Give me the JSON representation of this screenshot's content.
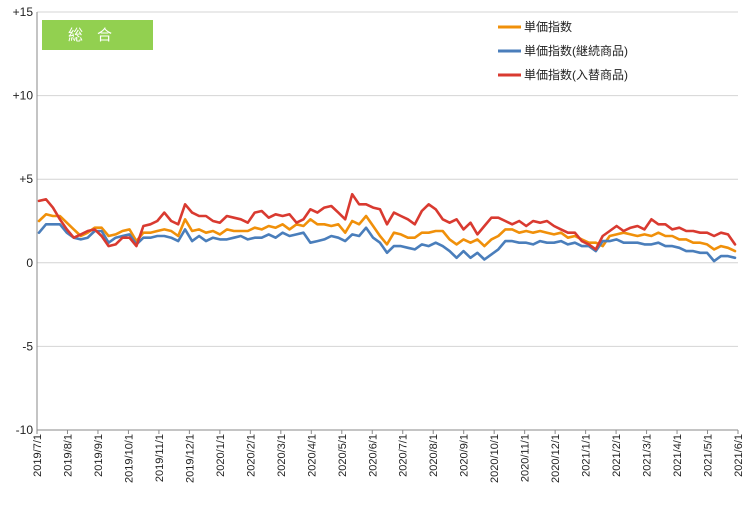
{
  "chart_data": {
    "type": "line",
    "title": "総合",
    "ylim": [
      -10,
      15
    ],
    "y_ticks": [
      {
        "value": 15,
        "label": "+15"
      },
      {
        "value": 10,
        "label": "+10"
      },
      {
        "value": 5,
        "label": "+5"
      },
      {
        "value": 0,
        "label": "0"
      },
      {
        "value": -5,
        "label": "-5"
      },
      {
        "value": -10,
        "label": "-10"
      }
    ],
    "x_tick_labels": [
      "2019/7/1",
      "2019/8/1",
      "2019/9/1",
      "2019/10/1",
      "2019/11/1",
      "2019/12/1",
      "2020/1/1",
      "2020/2/1",
      "2020/3/1",
      "2020/4/1",
      "2020/5/1",
      "2020/6/1",
      "2020/7/1",
      "2020/8/1",
      "2020/9/1",
      "2020/10/1",
      "2020/11/1",
      "2020/12/1",
      "2021/1/1",
      "2021/2/1",
      "2021/3/1",
      "2021/4/1",
      "2021/5/1",
      "2021/6/1"
    ],
    "grid": "horizontal-major",
    "legend_position": "top-right",
    "series": [
      {
        "name": "単価指数",
        "color": "#f0900a",
        "values": [
          2.5,
          2.9,
          2.8,
          2.8,
          2.4,
          2.0,
          1.6,
          1.8,
          2.1,
          2.1,
          1.6,
          1.7,
          1.9,
          2.0,
          1.3,
          1.8,
          1.8,
          1.9,
          2.0,
          1.9,
          1.6,
          2.6,
          1.9,
          2.0,
          1.8,
          1.9,
          1.7,
          2.0,
          1.9,
          1.9,
          1.9,
          2.1,
          2.0,
          2.2,
          2.1,
          2.3,
          2.0,
          2.3,
          2.2,
          2.6,
          2.3,
          2.3,
          2.2,
          2.3,
          1.8,
          2.5,
          2.3,
          2.8,
          2.2,
          1.6,
          1.1,
          1.8,
          1.7,
          1.5,
          1.5,
          1.8,
          1.8,
          1.9,
          1.9,
          1.4,
          1.1,
          1.4,
          1.2,
          1.4,
          1.0,
          1.4,
          1.6,
          2.0,
          2.0,
          1.8,
          1.9,
          1.8,
          1.9,
          1.8,
          1.7,
          1.8,
          1.5,
          1.6,
          1.4,
          1.2,
          1.2,
          1.0,
          1.6,
          1.7,
          1.8,
          1.7,
          1.6,
          1.7,
          1.6,
          1.8,
          1.6,
          1.6,
          1.4,
          1.4,
          1.2,
          1.2,
          1.1,
          0.8,
          1.0,
          0.9,
          0.7
        ],
        "smoothed_note": ""
      },
      {
        "name": "単価指数(継続商品)",
        "color": "#4a7ebb",
        "values": [
          1.8,
          2.3,
          2.3,
          2.3,
          1.8,
          1.5,
          1.4,
          1.5,
          1.9,
          1.9,
          1.2,
          1.5,
          1.6,
          1.7,
          1.1,
          1.5,
          1.5,
          1.6,
          1.6,
          1.5,
          1.3,
          2.0,
          1.3,
          1.6,
          1.3,
          1.5,
          1.4,
          1.4,
          1.5,
          1.6,
          1.4,
          1.5,
          1.5,
          1.7,
          1.5,
          1.8,
          1.6,
          1.7,
          1.8,
          1.2,
          1.3,
          1.4,
          1.6,
          1.5,
          1.3,
          1.7,
          1.6,
          2.1,
          1.5,
          1.2,
          0.6,
          1.0,
          1.0,
          0.9,
          0.8,
          1.1,
          1.0,
          1.2,
          1.0,
          0.7,
          0.3,
          0.7,
          0.3,
          0.6,
          0.2,
          0.5,
          0.8,
          1.3,
          1.3,
          1.2,
          1.2,
          1.1,
          1.3,
          1.2,
          1.2,
          1.3,
          1.1,
          1.2,
          1.0,
          1.0,
          0.7,
          1.3,
          1.3,
          1.4,
          1.2,
          1.2,
          1.2,
          1.1,
          1.1,
          1.2,
          1.0,
          1.0,
          0.9,
          0.7,
          0.7,
          0.6,
          0.6,
          0.1,
          0.4,
          0.4,
          0.3
        ],
        "smoothed_note": ""
      },
      {
        "name": "単価指数(入替商品)",
        "color": "#d93a30",
        "values": [
          3.7,
          3.8,
          3.3,
          2.6,
          2.0,
          1.5,
          1.7,
          1.9,
          2.0,
          1.6,
          1.0,
          1.1,
          1.5,
          1.5,
          1.0,
          2.2,
          2.3,
          2.5,
          3.0,
          2.5,
          2.3,
          3.5,
          3.0,
          2.8,
          2.8,
          2.5,
          2.4,
          2.8,
          2.7,
          2.6,
          2.4,
          3.0,
          3.1,
          2.7,
          2.9,
          2.8,
          2.9,
          2.4,
          2.6,
          3.2,
          3.0,
          3.3,
          3.4,
          3.0,
          2.6,
          4.1,
          3.5,
          3.5,
          3.3,
          3.2,
          2.3,
          3.0,
          2.8,
          2.6,
          2.3,
          3.1,
          3.5,
          3.2,
          2.6,
          2.4,
          2.6,
          2.0,
          2.4,
          1.7,
          2.2,
          2.7,
          2.7,
          2.5,
          2.3,
          2.5,
          2.2,
          2.5,
          2.4,
          2.5,
          2.2,
          2.0,
          1.8,
          1.8,
          1.3,
          1.1,
          0.8,
          1.6,
          1.9,
          2.2,
          1.9,
          2.1,
          2.2,
          2.0,
          2.6,
          2.3,
          2.3,
          2.0,
          2.1,
          1.9,
          1.9,
          1.8,
          1.8,
          1.6,
          1.8,
          1.7,
          1.1
        ],
        "smoothed_note": ""
      }
    ]
  }
}
